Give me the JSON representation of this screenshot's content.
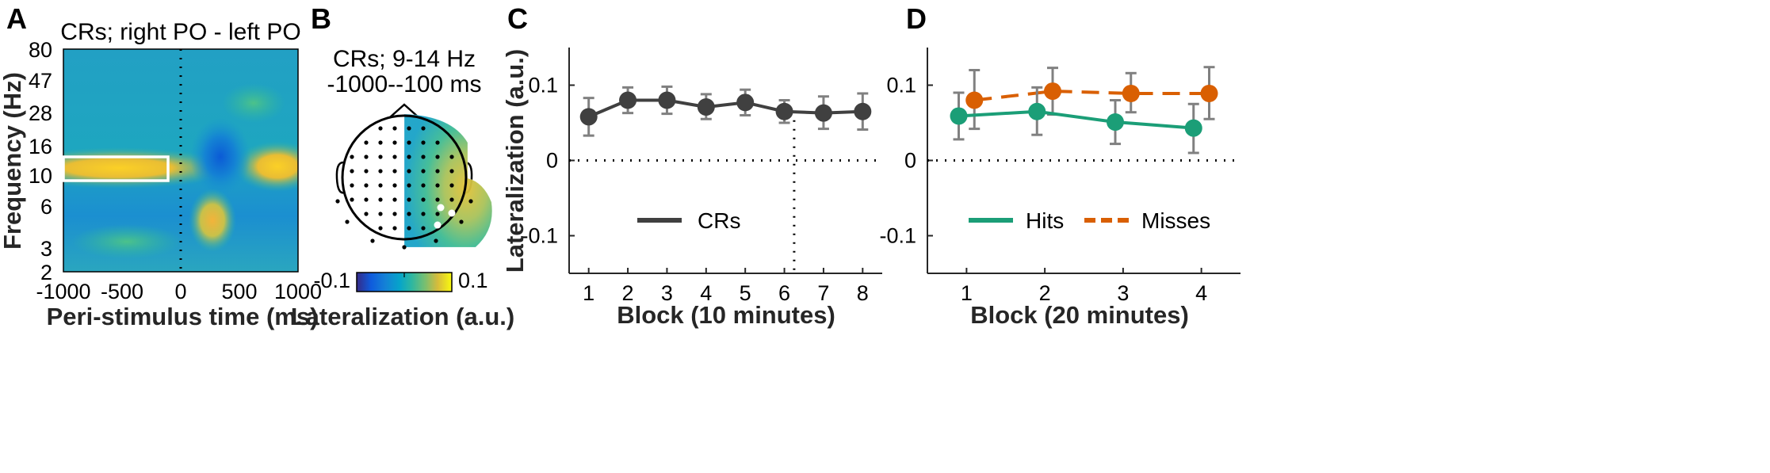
{
  "panels": {
    "A": {
      "letter": "A",
      "title": "CRs; right PO - left PO",
      "xlabel": "Peri-stimulus time (ms)",
      "ylabel": "Frequency (Hz)",
      "xticks": [
        "-1000",
        "-500",
        "0",
        "500",
        "1000"
      ],
      "yticks": [
        "80",
        "47",
        "28",
        "16",
        "10",
        "6",
        "3",
        "2"
      ]
    },
    "B": {
      "letter": "B",
      "title_line1": "CRs; 9-14 Hz",
      "title_line2": "-1000--100 ms",
      "colorbar_min": "-0.1",
      "colorbar_max": "0.1",
      "xlabel": "Lateralization (a.u.)"
    },
    "C": {
      "letter": "C",
      "ylabel": "Lateralization (a.u.)",
      "xlabel": "Block (10 minutes)",
      "legend_label": "CRs"
    },
    "D": {
      "letter": "D",
      "xlabel": "Block (20 minutes)",
      "legend_hits": "Hits",
      "legend_misses": "Misses"
    }
  },
  "colors": {
    "crs": "#404040",
    "hits": "#1b9e77",
    "misses": "#d95f02",
    "errorbar": "#808080",
    "parula_low": "#352a87",
    "parula_mid": "#21b1a0",
    "parula_high": "#f9fb0e"
  },
  "chart_data": [
    {
      "type": "heatmap",
      "panel": "A",
      "title": "CRs; right PO - left PO",
      "xlabel": "Peri-stimulus time (ms)",
      "ylabel": "Frequency (Hz)",
      "xlim": [
        -1000,
        1000
      ],
      "ylim": [
        2,
        80
      ],
      "yscale": "log",
      "xticks": [
        -1000,
        -500,
        0,
        500,
        1000
      ],
      "yticks": [
        2,
        3,
        6,
        10,
        16,
        28,
        47,
        80
      ],
      "colormap": "parula",
      "highlight_window": {
        "time_ms": [
          -1000,
          -100
        ],
        "freq_hz": [
          9,
          14
        ]
      }
    },
    {
      "type": "topography",
      "panel": "B",
      "title": "CRs; 9-14 Hz -1000--100 ms",
      "colorbar_range": [
        -0.1,
        0.1
      ],
      "colorbar_label": "Lateralization (a.u.)"
    },
    {
      "type": "line",
      "panel": "C",
      "xlabel": "Block (10 minutes)",
      "ylabel": "Lateralization (a.u.)",
      "xlim": [
        0.5,
        8.5
      ],
      "ylim": [
        -0.15,
        0.15
      ],
      "yticks": [
        -0.1,
        0,
        0.1
      ],
      "x": [
        1,
        2,
        3,
        4,
        5,
        6,
        7,
        8
      ],
      "series": [
        {
          "name": "CRs",
          "values": [
            0.058,
            0.08,
            0.08,
            0.071,
            0.077,
            0.065,
            0.063,
            0.065
          ],
          "err_low": [
            0.033,
            0.063,
            0.062,
            0.055,
            0.06,
            0.05,
            0.042,
            0.041
          ],
          "err_high": [
            0.083,
            0.097,
            0.098,
            0.088,
            0.094,
            0.08,
            0.085,
            0.089
          ]
        }
      ],
      "vline_x": 6.25
    },
    {
      "type": "line",
      "panel": "D",
      "xlabel": "Block (20 minutes)",
      "ylabel": "",
      "xlim": [
        0.5,
        4.5
      ],
      "ylim": [
        -0.15,
        0.15
      ],
      "yticks": [
        -0.1,
        0,
        0.1
      ],
      "series": [
        {
          "name": "Hits",
          "x": [
            0.9,
            1.9,
            2.9,
            3.9
          ],
          "values": [
            0.059,
            0.065,
            0.051,
            0.043
          ],
          "err_low": [
            0.028,
            0.034,
            0.022,
            0.01
          ],
          "err_high": [
            0.09,
            0.097,
            0.08,
            0.075
          ]
        },
        {
          "name": "Misses",
          "x": [
            1.1,
            2.1,
            3.1,
            4.1
          ],
          "values": [
            0.08,
            0.092,
            0.089,
            0.089
          ],
          "err_low": [
            0.042,
            0.061,
            0.064,
            0.055
          ],
          "err_high": [
            0.12,
            0.123,
            0.116,
            0.124
          ]
        }
      ]
    }
  ]
}
